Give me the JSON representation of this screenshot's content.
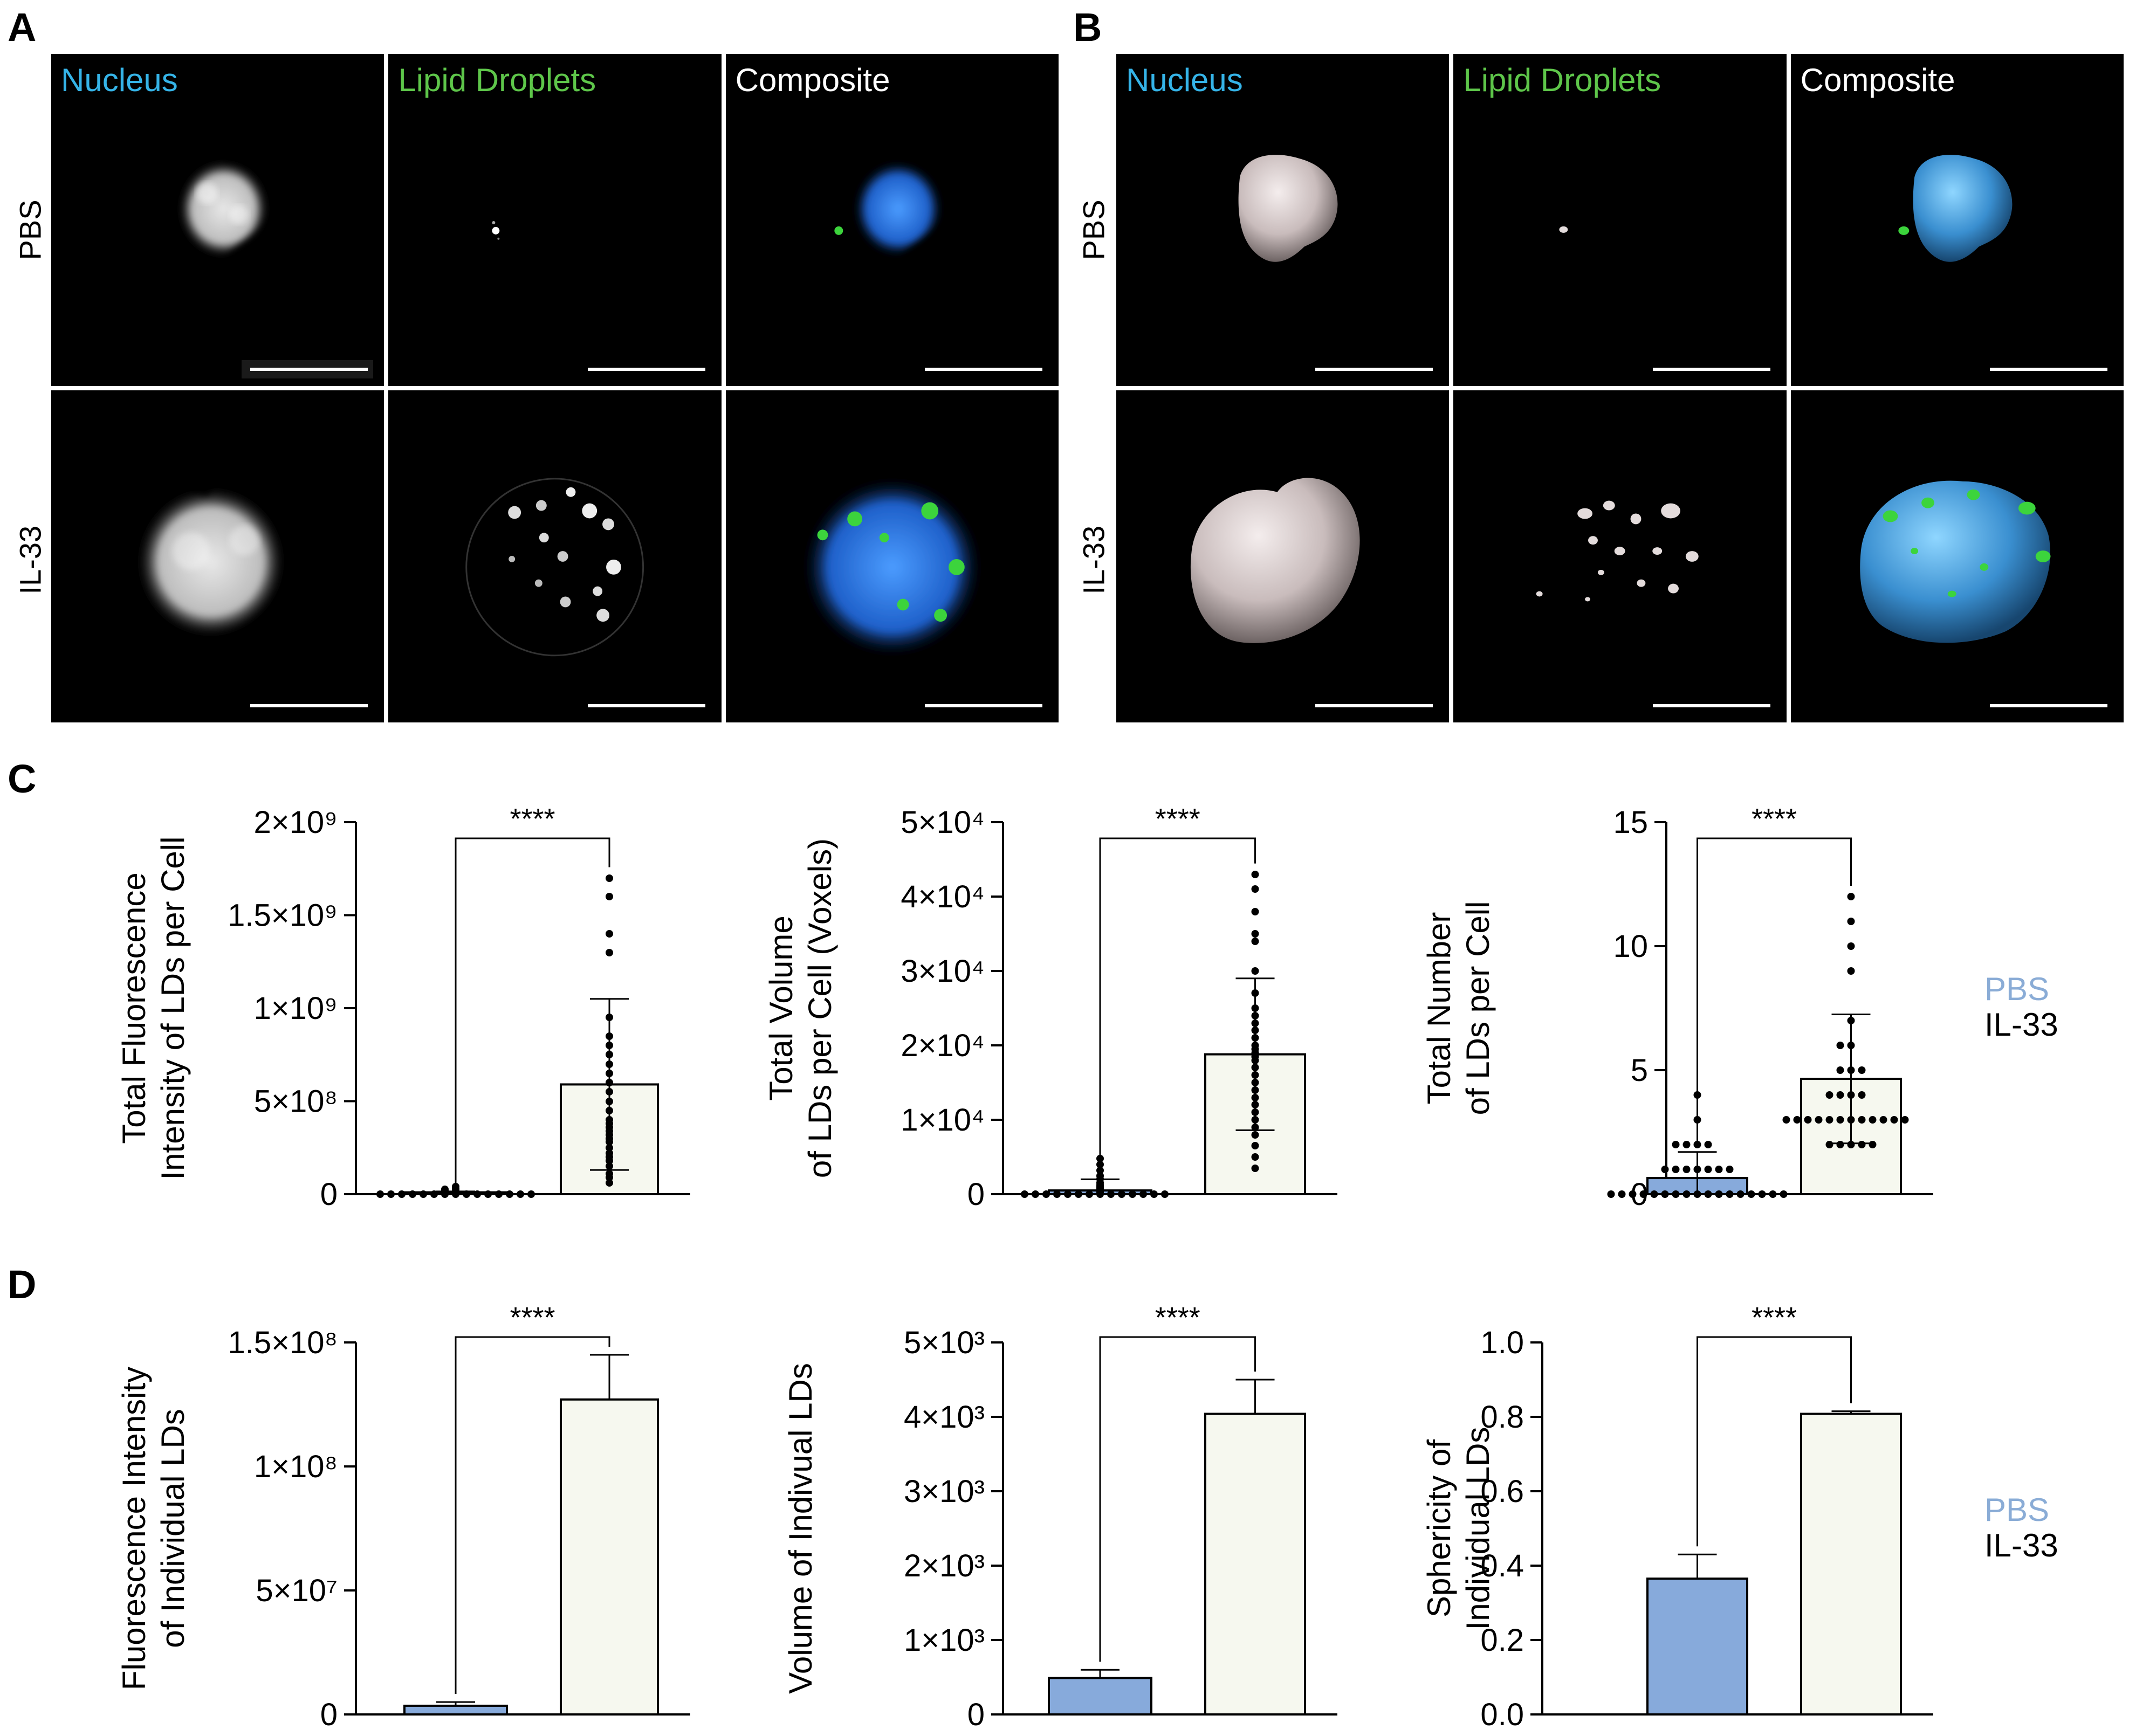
{
  "panels": {
    "a": "A",
    "b": "B",
    "c": "C",
    "d": "D"
  },
  "imaging": {
    "channels": [
      {
        "label": "Nucleus",
        "color": "#35b4e8"
      },
      {
        "label": "Lipid Droplets",
        "color": "#5ec64a"
      },
      {
        "label": "Composite",
        "color": "#ffffff"
      }
    ],
    "conditions": [
      "PBS",
      "IL-33"
    ]
  },
  "colors": {
    "pbs_bar": "#87aadb",
    "il33_bar": "#f6f8ef",
    "nucleus_blue": "#2b6fd6",
    "ld_green": "#3cd43c"
  },
  "legend": {
    "pbs": "PBS",
    "il33": "IL-33"
  },
  "chart_data": [
    {
      "type": "bar",
      "id": "c1",
      "ylabel": [
        "Total Fluorescence",
        "Intensity of LDs per Cell"
      ],
      "ylim": [
        0,
        2000000000
      ],
      "yticks": [
        "0",
        "5×10⁸",
        "1×10⁹",
        "1.5×10⁹",
        "2×10⁹"
      ],
      "ytick_values": [
        0,
        500000000,
        1000000000,
        1500000000,
        2000000000
      ],
      "categories": [
        "PBS",
        "IL-33"
      ],
      "values": [
        10000000,
        590000000
      ],
      "errors": [
        5000000,
        460000000
      ],
      "significance": "****",
      "points": [
        [
          0,
          0,
          0,
          0,
          0,
          0,
          0,
          0,
          0,
          0,
          0,
          0,
          0,
          0,
          0,
          5000000,
          10000000,
          10000000,
          15000000,
          15000000,
          20000000,
          20000000,
          25000000,
          25000000,
          30000000,
          40000000
        ],
        [
          60000000,
          90000000,
          110000000,
          150000000,
          180000000,
          200000000,
          220000000,
          250000000,
          280000000,
          300000000,
          320000000,
          340000000,
          360000000,
          380000000,
          400000000,
          450000000,
          500000000,
          550000000,
          600000000,
          650000000,
          700000000,
          750000000,
          800000000,
          850000000,
          950000000,
          1300000000,
          1400000000,
          1600000000,
          1700000000
        ]
      ]
    },
    {
      "type": "bar",
      "id": "c2",
      "ylabel": [
        "Total Volume",
        "of LDs per Cell (Voxels)"
      ],
      "ylim": [
        0,
        50000
      ],
      "yticks": [
        "0",
        "1×10⁴",
        "2×10⁴",
        "3×10⁴",
        "4×10⁴",
        "5×10⁴"
      ],
      "ytick_values": [
        0,
        10000,
        20000,
        30000,
        40000,
        50000
      ],
      "categories": [
        "PBS",
        "IL-33"
      ],
      "values": [
        500,
        18800
      ],
      "errors": [
        1500,
        10200
      ],
      "significance": "****",
      "points": [
        [
          0,
          0,
          0,
          0,
          0,
          0,
          0,
          0,
          0,
          0,
          0,
          0,
          0,
          0,
          200,
          300,
          400,
          500,
          700,
          900,
          1000,
          1200,
          1500,
          2000,
          2500,
          3200,
          4000,
          4800
        ],
        [
          3500,
          5000,
          6500,
          8000,
          9000,
          10000,
          11000,
          12000,
          13000,
          14000,
          15000,
          16000,
          17000,
          18000,
          18500,
          19000,
          19500,
          20000,
          21000,
          22000,
          23000,
          24000,
          25000,
          27000,
          30000,
          34000,
          35000,
          38000,
          41000,
          43000
        ]
      ]
    },
    {
      "type": "bar",
      "id": "c3",
      "ylabel": [
        "Total Number",
        "of LDs per Cell"
      ],
      "ylim": [
        0,
        15
      ],
      "yticks": [
        "0",
        "5",
        "10",
        "15"
      ],
      "ytick_values": [
        0,
        5,
        10,
        15
      ],
      "categories": [
        "PBS",
        "IL-33"
      ],
      "values": [
        0.65,
        4.65
      ],
      "errors": [
        1.05,
        2.6
      ],
      "significance": "****",
      "points": [
        [
          0,
          0,
          0,
          0,
          0,
          0,
          0,
          0,
          0,
          0,
          0,
          0,
          0,
          0,
          0,
          0,
          0,
          1,
          1,
          1,
          1,
          1,
          1,
          1,
          2,
          2,
          2,
          2,
          3,
          4
        ],
        [
          2,
          2,
          2,
          2,
          2,
          3,
          3,
          3,
          3,
          3,
          3,
          3,
          3,
          3,
          3,
          3,
          3,
          4,
          4,
          4,
          4,
          5,
          5,
          5,
          6,
          6,
          7,
          9,
          10,
          11,
          12
        ]
      ]
    },
    {
      "type": "bar",
      "id": "d1",
      "ylabel": [
        "Fluorescence Intensity",
        "of Individual LDs"
      ],
      "ylim": [
        0,
        150000000
      ],
      "yticks": [
        "0",
        "5×10⁷",
        "1×10⁸",
        "1.5×10⁸"
      ],
      "ytick_values": [
        0,
        50000000,
        100000000,
        150000000
      ],
      "categories": [
        "PBS",
        "IL-33"
      ],
      "values": [
        3500000,
        127000000
      ],
      "errors": [
        1500000,
        18000000
      ],
      "significance": "****"
    },
    {
      "type": "bar",
      "id": "d2",
      "ylabel": [
        "Volume of Indivual LDs"
      ],
      "ylim": [
        0,
        5000
      ],
      "yticks": [
        "0",
        "1×10³",
        "2×10³",
        "3×10³",
        "4×10³",
        "5×10³"
      ],
      "ytick_values": [
        0,
        1000,
        2000,
        3000,
        4000,
        5000
      ],
      "categories": [
        "PBS",
        "IL-33"
      ],
      "values": [
        490,
        4040
      ],
      "errors": [
        110,
        460
      ],
      "significance": "****"
    },
    {
      "type": "bar",
      "id": "d3",
      "ylabel": [
        "Sphericity of",
        "Individual LDs"
      ],
      "ylim": [
        0,
        1.0
      ],
      "yticks": [
        "0.0",
        "0.2",
        "0.4",
        "0.6",
        "0.8",
        "1.0"
      ],
      "ytick_values": [
        0,
        0.2,
        0.4,
        0.6,
        0.8,
        1.0
      ],
      "categories": [
        "PBS",
        "IL-33"
      ],
      "values": [
        0.365,
        0.808
      ],
      "errors": [
        0.065,
        0.007
      ],
      "significance": "****"
    }
  ]
}
